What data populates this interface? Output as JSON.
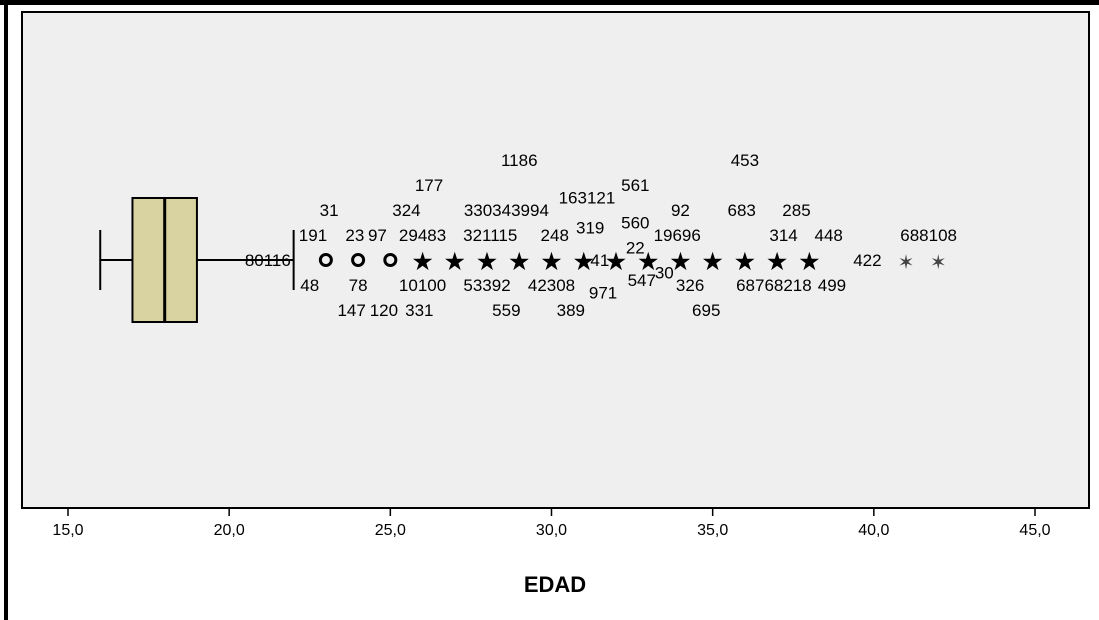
{
  "chart_data": {
    "type": "boxplot",
    "xlabel": "EDAD",
    "xlim": [
      13.5,
      46.5
    ],
    "x_ticks": [
      15,
      20,
      25,
      30,
      35,
      40,
      45
    ],
    "x_tick_labels": [
      "15,0",
      "20,0",
      "25,0",
      "30,0",
      "35,0",
      "40,0",
      "45,0"
    ],
    "colors": {
      "plot_background": "#efefef",
      "box_fill": "#d8d3a0",
      "frame": "#000000"
    },
    "grid": false,
    "box": {
      "whisker_low": 16,
      "q1": 17,
      "median": 18,
      "q3": 19,
      "whisker_high": 22
    },
    "outliers_circle": [
      23,
      24,
      25
    ],
    "outliers_star": [
      26,
      27,
      28,
      29,
      30,
      31,
      32,
      33,
      34,
      35,
      36,
      37,
      38,
      41,
      42
    ],
    "case_labels": [
      {
        "text": "80116",
        "x": 21.2,
        "level": 0
      },
      {
        "text": "31",
        "x": 23.1,
        "level": -2
      },
      {
        "text": "191",
        "x": 22.6,
        "level": -1
      },
      {
        "text": "48",
        "x": 22.5,
        "level": 1
      },
      {
        "text": "147",
        "x": 23.8,
        "level": 2
      },
      {
        "text": "23",
        "x": 23.9,
        "level": -1
      },
      {
        "text": "97",
        "x": 24.6,
        "level": -1
      },
      {
        "text": "78",
        "x": 24.0,
        "level": 1
      },
      {
        "text": "324",
        "x": 25.5,
        "level": -2
      },
      {
        "text": "177",
        "x": 26.2,
        "level": -3
      },
      {
        "text": "29483",
        "x": 26.0,
        "level": -1
      },
      {
        "text": "10100",
        "x": 26.0,
        "level": 1
      },
      {
        "text": "120",
        "x": 24.8,
        "level": 2
      },
      {
        "text": "331",
        "x": 25.9,
        "level": 2
      },
      {
        "text": "1186",
        "x": 29.0,
        "level": -4
      },
      {
        "text": "330343994",
        "x": 28.6,
        "level": -2
      },
      {
        "text": "321115",
        "x": 28.1,
        "level": -1
      },
      {
        "text": "53392",
        "x": 28.0,
        "level": 1
      },
      {
        "text": "559",
        "x": 28.6,
        "level": 2
      },
      {
        "text": "163121",
        "x": 31.1,
        "level": -2.5
      },
      {
        "text": "561",
        "x": 32.6,
        "level": -3
      },
      {
        "text": "560",
        "x": 32.6,
        "level": -1.5
      },
      {
        "text": "248",
        "x": 30.1,
        "level": -1
      },
      {
        "text": "319",
        "x": 31.2,
        "level": -1.3
      },
      {
        "text": "42308",
        "x": 30.0,
        "level": 1
      },
      {
        "text": "389",
        "x": 30.6,
        "level": 2
      },
      {
        "text": "41",
        "x": 31.5,
        "level": 0
      },
      {
        "text": "22",
        "x": 32.6,
        "level": -0.5
      },
      {
        "text": "971",
        "x": 31.6,
        "level": 1.3
      },
      {
        "text": "547",
        "x": 32.8,
        "level": 0.8
      },
      {
        "text": "30",
        "x": 33.5,
        "level": 0.5
      },
      {
        "text": "19696",
        "x": 33.9,
        "level": -1
      },
      {
        "text": "92",
        "x": 34.0,
        "level": -2
      },
      {
        "text": "326",
        "x": 34.3,
        "level": 1
      },
      {
        "text": "695",
        "x": 34.8,
        "level": 2
      },
      {
        "text": "453",
        "x": 36.0,
        "level": -4
      },
      {
        "text": "683",
        "x": 35.9,
        "level": -2
      },
      {
        "text": "285",
        "x": 37.6,
        "level": -2
      },
      {
        "text": "314",
        "x": 37.2,
        "level": -1
      },
      {
        "text": "448",
        "x": 38.6,
        "level": -1
      },
      {
        "text": "68768218",
        "x": 36.9,
        "level": 1
      },
      {
        "text": "499",
        "x": 38.7,
        "level": 1
      },
      {
        "text": "422",
        "x": 39.8,
        "level": 0
      },
      {
        "text": "688108",
        "x": 41.7,
        "level": -1
      }
    ]
  }
}
